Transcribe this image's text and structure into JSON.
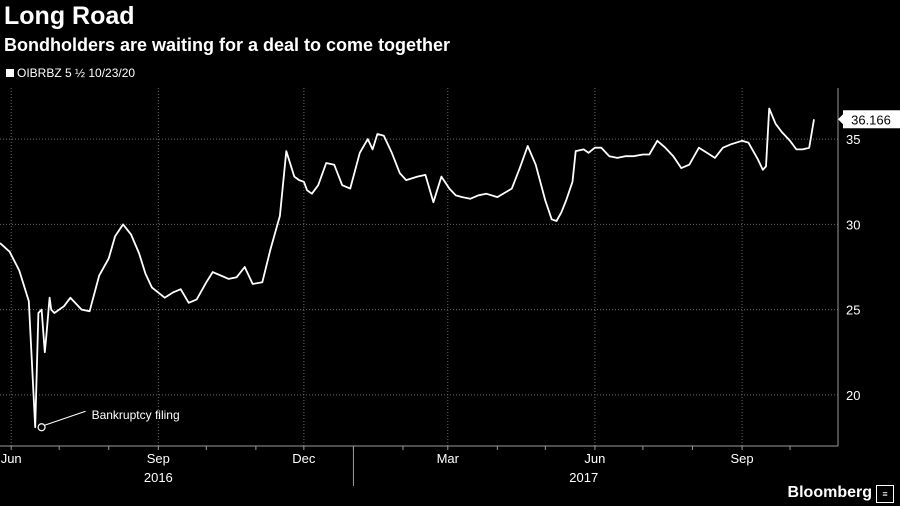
{
  "title": "Long Road",
  "subtitle": "Bondholders are waiting for a deal to come together",
  "legend_label": "OIBRBZ 5 ½ 10/23/20",
  "brand": "Bloomberg",
  "brand_icon": "≡",
  "colors": {
    "background": "#000000",
    "line": "#ffffff",
    "grid": "#6a6a6a"
  },
  "chart_data": {
    "type": "line",
    "x_unit": "date",
    "xlim": [
      "2016-05-25",
      "2017-10-31"
    ],
    "ylim": [
      17,
      38
    ],
    "y_ticks": [
      20,
      25,
      30,
      35
    ],
    "x_ticks": [
      {
        "date": "2016-06-01",
        "label": "Jun"
      },
      {
        "date": "2016-09-01",
        "label": "Sep"
      },
      {
        "date": "2016-12-01",
        "label": "Dec"
      },
      {
        "date": "2017-03-01",
        "label": "Mar"
      },
      {
        "date": "2017-06-01",
        "label": "Jun"
      },
      {
        "date": "2017-09-01",
        "label": "Sep"
      }
    ],
    "year_labels": [
      {
        "date": "2016-09-01",
        "label": "2016"
      },
      {
        "date": "2017-05-25",
        "label": "2017"
      }
    ],
    "grid": true,
    "last_value_label": "36.166",
    "annotation": {
      "date": "2016-06-20",
      "value": 18.1,
      "text": "Bankruptcy filing"
    },
    "series": [
      {
        "x": [
          "2016-05-25",
          "2016-05-31",
          "2016-06-06",
          "2016-06-12",
          "2016-06-16",
          "2016-06-18",
          "2016-06-20",
          "2016-06-22",
          "2016-06-23",
          "2016-06-25",
          "2016-06-26",
          "2016-06-28",
          "2016-07-04",
          "2016-07-08",
          "2016-07-15",
          "2016-07-20",
          "2016-07-26",
          "2016-08-01",
          "2016-08-05",
          "2016-08-10",
          "2016-08-15",
          "2016-08-20",
          "2016-08-24",
          "2016-08-28",
          "2016-09-01",
          "2016-09-05",
          "2016-09-10",
          "2016-09-15",
          "2016-09-20",
          "2016-09-25",
          "2016-10-01",
          "2016-10-05",
          "2016-10-10",
          "2016-10-15",
          "2016-10-20",
          "2016-10-25",
          "2016-10-30",
          "2016-11-05",
          "2016-11-10",
          "2016-11-13",
          "2016-11-16",
          "2016-11-20",
          "2016-11-25",
          "2016-11-28",
          "2016-12-01",
          "2016-12-03",
          "2016-12-06",
          "2016-12-10",
          "2016-12-15",
          "2016-12-20",
          "2016-12-25",
          "2016-12-30",
          "2017-01-05",
          "2017-01-10",
          "2017-01-13",
          "2017-01-16",
          "2017-01-20",
          "2017-01-25",
          "2017-01-30",
          "2017-02-03",
          "2017-02-10",
          "2017-02-15",
          "2017-02-20",
          "2017-02-25",
          "2017-03-02",
          "2017-03-06",
          "2017-03-10",
          "2017-03-15",
          "2017-03-20",
          "2017-03-25",
          "2017-04-01",
          "2017-04-10",
          "2017-04-15",
          "2017-04-20",
          "2017-04-25",
          "2017-05-01",
          "2017-05-05",
          "2017-05-08",
          "2017-05-11",
          "2017-05-14",
          "2017-05-18",
          "2017-05-20",
          "2017-05-25",
          "2017-05-28",
          "2017-06-01",
          "2017-06-05",
          "2017-06-10",
          "2017-06-15",
          "2017-06-20",
          "2017-06-25",
          "2017-07-01",
          "2017-07-05",
          "2017-07-10",
          "2017-07-15",
          "2017-07-20",
          "2017-07-25",
          "2017-07-30",
          "2017-08-05",
          "2017-08-10",
          "2017-08-15",
          "2017-08-20",
          "2017-08-25",
          "2017-09-01",
          "2017-09-05",
          "2017-09-08",
          "2017-09-11",
          "2017-09-14",
          "2017-09-16",
          "2017-09-18",
          "2017-09-22",
          "2017-09-26",
          "2017-10-01",
          "2017-10-05",
          "2017-10-09",
          "2017-10-13",
          "2017-10-16"
        ],
        "y": [
          28.9,
          28.4,
          27.3,
          25.5,
          18.1,
          24.8,
          25.0,
          22.5,
          23.5,
          25.7,
          25.0,
          24.8,
          25.2,
          25.7,
          25.0,
          24.9,
          27.0,
          28.0,
          29.3,
          30.0,
          29.4,
          28.3,
          27.1,
          26.3,
          26.0,
          25.7,
          26.0,
          26.2,
          25.4,
          25.6,
          26.6,
          27.2,
          27.0,
          26.8,
          26.9,
          27.5,
          26.5,
          26.6,
          28.5,
          29.5,
          30.5,
          34.3,
          32.8,
          32.6,
          32.5,
          32.0,
          31.8,
          32.3,
          33.6,
          33.5,
          32.3,
          32.1,
          34.2,
          35.0,
          34.4,
          35.3,
          35.2,
          34.2,
          33.0,
          32.6,
          32.8,
          32.9,
          31.3,
          32.8,
          32.1,
          31.7,
          31.6,
          31.5,
          31.7,
          31.8,
          31.6,
          32.1,
          33.3,
          34.6,
          33.5,
          31.4,
          30.3,
          30.2,
          30.7,
          31.4,
          32.5,
          34.3,
          34.4,
          34.2,
          34.5,
          34.5,
          34.0,
          33.9,
          34.0,
          34.0,
          34.1,
          34.1,
          34.9,
          34.5,
          34.0,
          33.3,
          33.5,
          34.5,
          34.2,
          33.9,
          34.5,
          34.7,
          34.9,
          34.8,
          34.3,
          33.8,
          33.2,
          33.4,
          36.8,
          35.9,
          35.4,
          34.9,
          34.4,
          34.4,
          34.5,
          36.166
        ]
      }
    ]
  }
}
